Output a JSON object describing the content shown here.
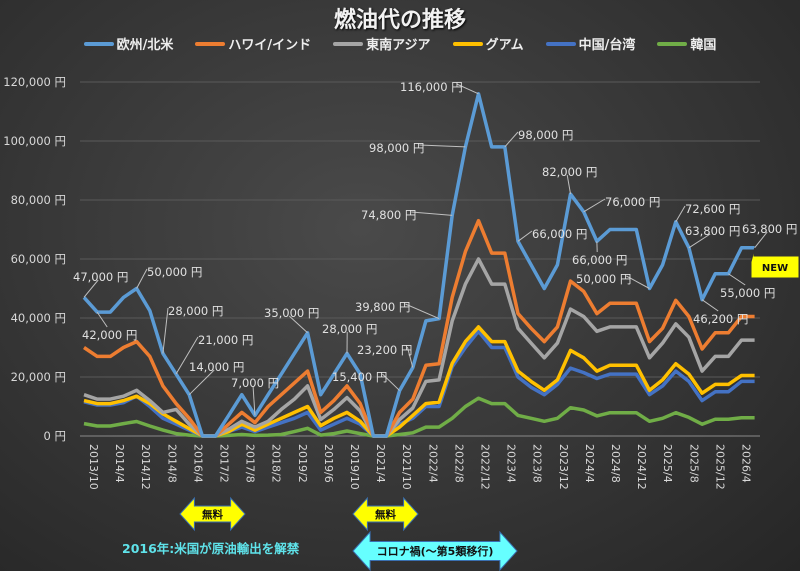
{
  "chart_data": {
    "type": "line",
    "title": "燃油代の推移",
    "ylim": [
      0,
      120000
    ],
    "y_ticks": [
      0,
      20000,
      40000,
      60000,
      80000,
      100000,
      120000
    ],
    "y_tick_labels": [
      "0 円",
      "20,000 円",
      "40,000 円",
      "60,000 円",
      "80,000 円",
      "100,000 円",
      "120,000 円"
    ],
    "grid": "horizontal",
    "legend_position": "top",
    "x_tick_labels": [
      "2013/10",
      "2014/4",
      "2014/12",
      "2014/8",
      "2016/4",
      "2017/2",
      "2017/8",
      "2018/2",
      "2019/2",
      "2019/6",
      "2019/10",
      "2021/4",
      "2021/10",
      "2022/4",
      "2022/8",
      "2022/12",
      "2023/4",
      "2023/8",
      "2023/12",
      "2024/4",
      "2024/8",
      "2024/12",
      "2025/4",
      "2025/8",
      "2025/12",
      "2026/4"
    ],
    "series": [
      {
        "name": "欧州/北米",
        "color": "#5b9bd5",
        "values": [
          47000,
          42000,
          42000,
          47000,
          50000,
          42500,
          28000,
          21000,
          14000,
          0,
          0,
          7000,
          14000,
          7000,
          14000,
          21000,
          28000,
          35000,
          14000,
          21000,
          28000,
          21000,
          0,
          0,
          15400,
          23200,
          39000,
          39800,
          74800,
          98000,
          116000,
          98000,
          98000,
          66000,
          58000,
          50000,
          58000,
          82000,
          76000,
          66000,
          70000,
          70000,
          70000,
          50000,
          58000,
          72600,
          63800,
          46200,
          55000,
          55000,
          63800,
          63800
        ]
      },
      {
        "name": "ハワイ/インド",
        "color": "#ed7d31",
        "values": [
          30000,
          27000,
          27000,
          30000,
          32000,
          27000,
          17000,
          11000,
          6000,
          0,
          0,
          4000,
          8000,
          4500,
          10000,
          14000,
          18000,
          22000,
          8000,
          12000,
          17000,
          11000,
          0,
          0,
          8000,
          12500,
          24000,
          24500,
          47000,
          62500,
          73000,
          62000,
          62000,
          41500,
          36500,
          32000,
          37000,
          52500,
          49000,
          41500,
          45000,
          45000,
          45000,
          32000,
          36500,
          46000,
          40500,
          29500,
          35000,
          35000,
          40500,
          40500
        ]
      },
      {
        "name": "東南アジア",
        "color": "#a5a5a5",
        "values": [
          14000,
          12500,
          12500,
          13500,
          15500,
          12000,
          8000,
          9000,
          4000,
          0,
          0,
          2300,
          5000,
          3000,
          5000,
          9000,
          12500,
          17000,
          5600,
          9000,
          13000,
          8500,
          0,
          0,
          5600,
          9500,
          18500,
          19000,
          39000,
          51500,
          60000,
          51500,
          51500,
          36500,
          31500,
          26500,
          31500,
          43000,
          40500,
          35500,
          37000,
          37000,
          37000,
          26500,
          31500,
          38000,
          33500,
          22000,
          27000,
          27000,
          32500,
          32500
        ]
      },
      {
        "name": "グアム",
        "color": "#ffc000",
        "values": [
          12000,
          11000,
          11000,
          12000,
          13500,
          11000,
          7500,
          5000,
          2500,
          0,
          0,
          1500,
          4000,
          2000,
          4000,
          6000,
          8000,
          10000,
          3500,
          6000,
          8000,
          5000,
          0,
          0,
          3000,
          7000,
          11000,
          11500,
          24600,
          32000,
          37000,
          32000,
          32000,
          22000,
          18500,
          15500,
          19000,
          29000,
          26500,
          22000,
          24000,
          24000,
          24000,
          15500,
          19000,
          24500,
          21000,
          14500,
          17500,
          17500,
          20500,
          20500
        ]
      },
      {
        "name": "中国/台湾",
        "color": "#4472c4",
        "values": [
          11600,
          10500,
          10500,
          11300,
          13500,
          10000,
          6000,
          4000,
          2000,
          0,
          0,
          1500,
          3000,
          1500,
          3000,
          4500,
          6000,
          8000,
          2000,
          4000,
          6000,
          4000,
          0,
          0,
          4000,
          6000,
          10000,
          10000,
          23500,
          30000,
          35500,
          30000,
          30000,
          20000,
          16500,
          14000,
          17500,
          23000,
          21500,
          19500,
          21000,
          21000,
          21000,
          14000,
          17000,
          22000,
          18500,
          12000,
          15000,
          15000,
          18500,
          18500
        ]
      },
      {
        "name": "韓国",
        "color": "#70ad47",
        "values": [
          4200,
          3400,
          3400,
          4200,
          4900,
          3400,
          2000,
          800,
          300,
          0,
          0,
          200,
          500,
          200,
          300,
          500,
          1500,
          2600,
          300,
          800,
          1700,
          800,
          0,
          0,
          500,
          1100,
          3000,
          3000,
          6000,
          10000,
          12800,
          11000,
          11000,
          7000,
          6000,
          5000,
          6000,
          9600,
          8800,
          6800,
          7900,
          7900,
          7900,
          5000,
          6000,
          7900,
          6300,
          4000,
          5700,
          5700,
          6200,
          6200
        ]
      }
    ],
    "annotations": [
      {
        "point": 0,
        "text": "47,000 円"
      },
      {
        "point": 1,
        "text": "42,000 円"
      },
      {
        "point": 4,
        "text": "50,000 円"
      },
      {
        "point": 6,
        "text": "28,000 円"
      },
      {
        "point": 7,
        "text": "21,000 円"
      },
      {
        "point": 8,
        "text": "14,000 円"
      },
      {
        "point": 13,
        "text": "7,000 円"
      },
      {
        "point": 17,
        "text": "35,000 円"
      },
      {
        "point": 20,
        "text": "28,000 円"
      },
      {
        "point": 24,
        "text": "15,400 円"
      },
      {
        "point": 25,
        "text": "23,200 円"
      },
      {
        "point": 27,
        "text": "39,800 円"
      },
      {
        "point": 28,
        "text": "74,800 円"
      },
      {
        "point": 29,
        "text": "98,000 円"
      },
      {
        "point": 30,
        "text": "116,000 円"
      },
      {
        "point": 32,
        "text": "98,000 円"
      },
      {
        "point": 33,
        "text": "66,000 円"
      },
      {
        "point": 37,
        "text": "82,000 円"
      },
      {
        "point": 38,
        "text": "76,000 円"
      },
      {
        "point": 39,
        "text": "66,000 円"
      },
      {
        "point": 43,
        "text": "50,000 円"
      },
      {
        "point": 45,
        "text": "72,600 円"
      },
      {
        "point": 46,
        "text": "63,800 円"
      },
      {
        "point": 47,
        "text": "46,200 円"
      },
      {
        "point": 49,
        "text": "55,000 円"
      },
      {
        "point": 51,
        "text": "63,800 円"
      }
    ],
    "new_badge": "NEW",
    "arrows": [
      {
        "text": "無料",
        "color": "#ffff00"
      },
      {
        "text": "無料",
        "color": "#ffff00"
      },
      {
        "text": "コロナ禍(～第5類移行)",
        "color": "#66ffff"
      }
    ],
    "caption": "2016年:米国が原油輸出を解禁"
  }
}
